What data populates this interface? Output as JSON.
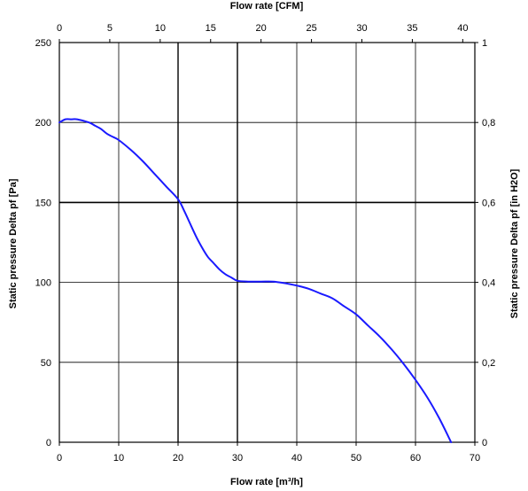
{
  "chart_data": {
    "type": "line",
    "xlabel": "Flow rate [m³/h]",
    "x2label": "Flow rate [CFM]",
    "ylabel": "Static pressure Delta pf [Pa]",
    "y2label": "Static pressure Delta pf [in H2O]",
    "xlim": [
      0,
      70
    ],
    "ylim": [
      0,
      250
    ],
    "x2lim": [
      0,
      41.2
    ],
    "y2lim": [
      0,
      1
    ],
    "x_ticks": [
      0,
      10,
      20,
      30,
      40,
      50,
      60,
      70
    ],
    "x_tick_labels": [
      "0",
      "10",
      "20",
      "30",
      "40",
      "50",
      "60",
      "70"
    ],
    "y_ticks": [
      0,
      50,
      100,
      150,
      200,
      250
    ],
    "y_tick_labels": [
      "0",
      "50",
      "100",
      "150",
      "200",
      "250"
    ],
    "x2_ticks": [
      0,
      5,
      10,
      15,
      20,
      25,
      30,
      35,
      40
    ],
    "x2_tick_labels": [
      "0",
      "5",
      "10",
      "15",
      "20",
      "25",
      "30",
      "35",
      "40"
    ],
    "y2_ticks": [
      0,
      0.2,
      0.4,
      0.6,
      0.8,
      1
    ],
    "y2_tick_labels": [
      "0",
      "0,2",
      "0,4",
      "0,6",
      "0,8",
      "1"
    ],
    "grid": true,
    "series": [
      {
        "color": "#1a1aff",
        "x": [
          0,
          1,
          2,
          3,
          5,
          6,
          7,
          8,
          9,
          10,
          12,
          14,
          16,
          18,
          20,
          21,
          22,
          23,
          24,
          25,
          26,
          27,
          28,
          29,
          30,
          32,
          34,
          36,
          38,
          40,
          42,
          44,
          46,
          48,
          50,
          52,
          54,
          56,
          58,
          60,
          62,
          64,
          66
        ],
        "y": [
          200,
          202,
          202,
          202,
          200,
          198,
          196,
          193,
          191,
          189,
          183,
          176,
          168,
          160,
          152,
          145,
          137,
          129,
          122,
          116,
          112,
          108,
          105,
          103,
          101,
          100.5,
          100.5,
          100.5,
          99.5,
          98,
          96,
          93,
          90,
          85,
          80,
          73,
          66,
          58,
          49,
          39,
          28,
          15,
          0
        ]
      }
    ]
  }
}
